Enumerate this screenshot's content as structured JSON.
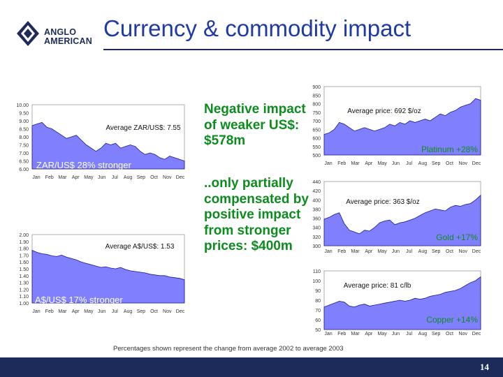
{
  "title": "Currency & commodity impact",
  "logo": {
    "line1": "ANGLO",
    "line2": "AMERICAN"
  },
  "page_number": "14",
  "footnote": "Percentages shown represent the change from average 2002 to average 2003",
  "middle_text": {
    "negative": "Negative impact of weaker US$: $578m",
    "positive": "..only partially compensated by positive impact from stronger prices: $400m"
  },
  "colors": {
    "title": "#1f3aa6",
    "accent_text": "#0d8c1e",
    "area_fill": "#8080ff",
    "area_stroke": "#1a1a8c",
    "bar": "#1c2b5a"
  },
  "chart_data": [
    {
      "type": "area",
      "title": "ZAR/US$",
      "ylabels": [
        "10.00",
        "9.50",
        "9.00",
        "8.50",
        "8.00",
        "7.50",
        "7.00",
        "6.50",
        "6.00"
      ],
      "ylim": [
        6.0,
        10.0
      ],
      "xlabels": [
        "Jan",
        "Feb",
        "Mar",
        "Apr",
        "May",
        "Jun",
        "Jul",
        "Aug",
        "Sep",
        "Oct",
        "Nov",
        "Dec"
      ],
      "values": [
        8.7,
        8.8,
        8.9,
        8.6,
        8.5,
        8.3,
        8.1,
        7.9,
        8.0,
        8.1,
        7.8,
        7.5,
        7.3,
        7.1,
        7.3,
        7.6,
        7.5,
        7.6,
        7.3,
        7.4,
        7.5,
        7.4,
        7.1,
        6.9,
        7.0,
        6.9,
        6.7,
        6.6,
        6.8,
        6.7,
        6.6,
        6.5
      ],
      "annotation": "Average ZAR/US$: 7.55",
      "label": "ZAR/US$ 28% stronger"
    },
    {
      "type": "area",
      "title": "A$/US$",
      "ylabels": [
        "2.00",
        "1.90",
        "1.80",
        "1.70",
        "1.60",
        "1.50",
        "1.40",
        "1.30",
        "1.20",
        "1.10",
        "1.00"
      ],
      "ylim": [
        1.0,
        2.0
      ],
      "xlabels": [
        "Jan",
        "Feb",
        "Mar",
        "Apr",
        "May",
        "Jun",
        "Jul",
        "Aug",
        "Sep",
        "Oct",
        "Nov",
        "Dec"
      ],
      "values": [
        1.77,
        1.74,
        1.72,
        1.71,
        1.69,
        1.68,
        1.7,
        1.67,
        1.65,
        1.63,
        1.6,
        1.58,
        1.56,
        1.54,
        1.52,
        1.53,
        1.51,
        1.5,
        1.52,
        1.49,
        1.47,
        1.46,
        1.45,
        1.44,
        1.42,
        1.41,
        1.4,
        1.4,
        1.38,
        1.37,
        1.36,
        1.34
      ],
      "annotation": "Average A$/US$: 1.53",
      "label": "A$/US$ 17% stronger"
    },
    {
      "type": "area",
      "title": "Platinum",
      "ylabels": [
        "900",
        "850",
        "800",
        "750",
        "700",
        "650",
        "600",
        "550",
        "500"
      ],
      "ylim": [
        500,
        900
      ],
      "xlabels": [
        "Jan",
        "Feb",
        "Mar",
        "Apr",
        "May",
        "Jun",
        "Jul",
        "Aug",
        "Sep",
        "Oct",
        "Nov",
        "Dec"
      ],
      "values": [
        620,
        630,
        650,
        690,
        680,
        660,
        640,
        650,
        660,
        650,
        640,
        650,
        660,
        680,
        670,
        690,
        680,
        700,
        690,
        700,
        710,
        700,
        720,
        740,
        730,
        750,
        760,
        780,
        790,
        800,
        830,
        820
      ],
      "annotation": "Average price: 692 $/oz",
      "label": "Platinum +28%"
    },
    {
      "type": "area",
      "title": "Gold",
      "ylabels": [
        "440",
        "420",
        "400",
        "380",
        "360",
        "340",
        "320",
        "300"
      ],
      "ylim": [
        300,
        440
      ],
      "xlabels": [
        "Jan",
        "Feb",
        "Mar",
        "Apr",
        "May",
        "Jun",
        "Jul",
        "Aug",
        "Sep",
        "Oct",
        "Nov",
        "Dec"
      ],
      "values": [
        358,
        362,
        368,
        372,
        348,
        334,
        330,
        326,
        334,
        332,
        340,
        350,
        354,
        356,
        346,
        350,
        352,
        356,
        360,
        366,
        372,
        376,
        380,
        378,
        376,
        384,
        388,
        386,
        390,
        392,
        400,
        410
      ],
      "annotation": "Average price: 363 $/oz",
      "label": "Gold +17%"
    },
    {
      "type": "area",
      "title": "Copper",
      "ylabels": [
        "110",
        "100",
        "90",
        "80",
        "70",
        "60",
        "50"
      ],
      "ylim": [
        50,
        110
      ],
      "xlabels": [
        "Jan",
        "Feb",
        "Mar",
        "Apr",
        "May",
        "Jun",
        "Jul",
        "Aug",
        "Sep",
        "Oct",
        "Nov",
        "Dec"
      ],
      "values": [
        73,
        75,
        77,
        79,
        78,
        74,
        73,
        75,
        76,
        74,
        75,
        76,
        77,
        78,
        79,
        80,
        79,
        80,
        82,
        81,
        82,
        84,
        85,
        86,
        88,
        89,
        90,
        92,
        95,
        98,
        100,
        104
      ],
      "annotation": "Average price: 81 c/lb",
      "label": "Copper +14%"
    }
  ]
}
